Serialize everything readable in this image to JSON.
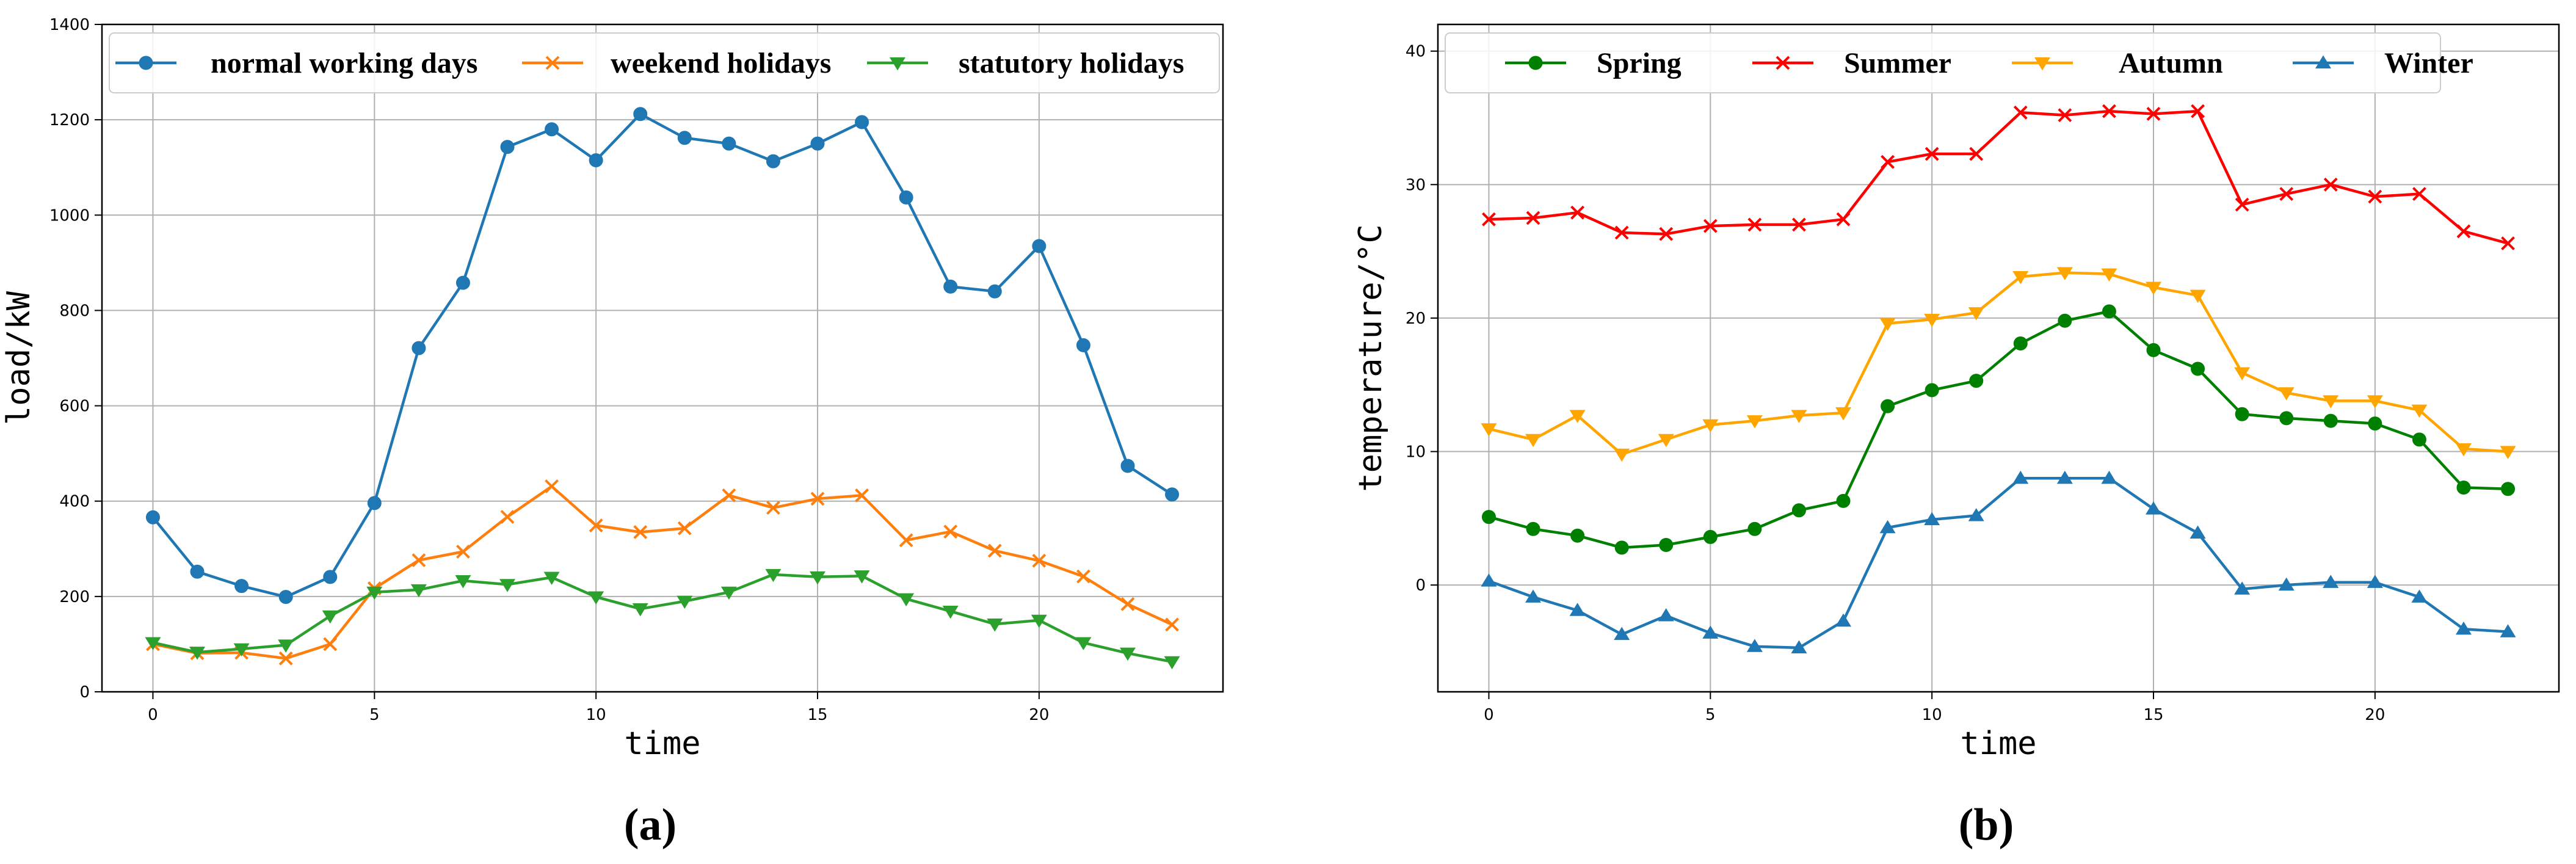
{
  "chart_data": [
    {
      "type": "line",
      "panel_label": "(a)",
      "xlabel": "time",
      "ylabel": "load/kW",
      "xlim": [
        -1.15,
        24.15
      ],
      "ylim": [
        0,
        1400
      ],
      "x_ticks": [
        0,
        5,
        10,
        15,
        20
      ],
      "y_ticks": [
        0,
        200,
        400,
        600,
        800,
        1000,
        1200,
        1400
      ],
      "grid": true,
      "legend_position": "top",
      "x": [
        0,
        1,
        2,
        3,
        4,
        5,
        6,
        7,
        8,
        9,
        10,
        11,
        12,
        13,
        14,
        15,
        16,
        17,
        18,
        19,
        20,
        21,
        22,
        23
      ],
      "series": [
        {
          "name": "normal working days",
          "color": "#1f77b4",
          "marker": "circle",
          "values": [
            366,
            252,
            222,
            199,
            241,
            396,
            721,
            858,
            1143,
            1180,
            1115,
            1212,
            1162,
            1150,
            1113,
            1150,
            1195,
            1037,
            850,
            840,
            935,
            727,
            474,
            414
          ]
        },
        {
          "name": "weekend holidays",
          "color": "#ff7f0e",
          "marker": "x",
          "values": [
            100,
            81,
            82,
            70,
            100,
            217,
            276,
            294,
            367,
            431,
            349,
            335,
            343,
            412,
            386,
            405,
            412,
            318,
            336,
            296,
            275,
            242,
            184,
            141
          ]
        },
        {
          "name": "statutory holidays",
          "color": "#2ca02c",
          "marker": "triangle-down",
          "values": [
            103,
            83,
            90,
            98,
            159,
            209,
            214,
            233,
            225,
            240,
            199,
            174,
            190,
            209,
            246,
            241,
            243,
            195,
            169,
            142,
            150,
            103,
            81,
            63
          ]
        }
      ]
    },
    {
      "type": "line",
      "panel_label": "(b)",
      "xlabel": "time",
      "ylabel": "temperature/°C",
      "xlim": [
        -1.15,
        24.15
      ],
      "ylim": [
        -8,
        42
      ],
      "x_ticks": [
        0,
        5,
        10,
        15,
        20
      ],
      "y_ticks": [
        0,
        10,
        20,
        30,
        40
      ],
      "grid": true,
      "legend_position": "top",
      "x": [
        0,
        1,
        2,
        3,
        4,
        5,
        6,
        7,
        8,
        9,
        10,
        11,
        12,
        13,
        14,
        15,
        16,
        17,
        18,
        19,
        20,
        21,
        22,
        23
      ],
      "series": [
        {
          "name": "Spring",
          "color": "#008000",
          "marker": "circle",
          "values": [
            5.1,
            4.2,
            3.7,
            2.8,
            3.0,
            3.6,
            4.2,
            5.6,
            6.3,
            13.4,
            14.6,
            15.3,
            18.1,
            19.8,
            20.5,
            17.6,
            16.2,
            12.8,
            12.5,
            12.3,
            12.1,
            10.9,
            7.3,
            7.2
          ]
        },
        {
          "name": "Summer",
          "color": "#ff0000",
          "marker": "x",
          "values": [
            27.4,
            27.5,
            27.9,
            26.4,
            26.3,
            26.9,
            27.0,
            27.0,
            27.4,
            31.7,
            32.3,
            32.3,
            35.4,
            35.2,
            35.5,
            35.3,
            35.5,
            28.5,
            29.3,
            30.0,
            29.1,
            29.3,
            26.5,
            25.6
          ]
        },
        {
          "name": "Autumn",
          "color": "#ffa500",
          "marker": "triangle-down",
          "values": [
            11.7,
            10.9,
            12.7,
            9.8,
            10.9,
            12.0,
            12.3,
            12.7,
            12.9,
            19.6,
            19.9,
            20.4,
            23.1,
            23.4,
            23.3,
            22.3,
            21.7,
            15.9,
            14.4,
            13.8,
            13.8,
            13.1,
            10.2,
            10.0
          ]
        },
        {
          "name": "Winter",
          "color": "#1f77b4",
          "marker": "triangle-up",
          "values": [
            0.3,
            -0.9,
            -1.9,
            -3.7,
            -2.3,
            -3.6,
            -4.6,
            -4.7,
            -2.7,
            4.3,
            4.9,
            5.2,
            8.0,
            8.0,
            8.0,
            5.7,
            3.9,
            -0.3,
            0.0,
            0.2,
            0.2,
            -0.9,
            -3.3,
            -3.5
          ]
        }
      ]
    }
  ]
}
